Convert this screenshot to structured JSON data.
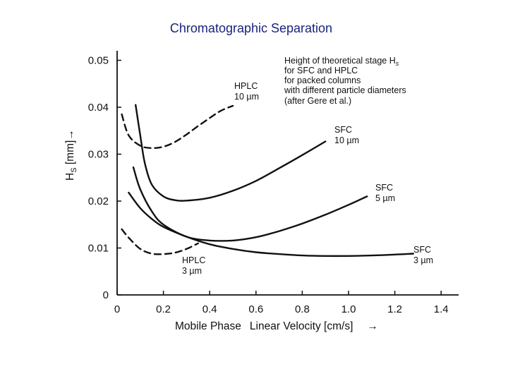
{
  "title": "Chromatographic Separation",
  "chart_data": {
    "type": "line",
    "title": "Chromatographic Separation",
    "xlabel": "Mobile Phase  Linear Velocity [cm/s]",
    "xlabel_parts": [
      "Mobile Phase",
      "Linear Velocity [cm/s]"
    ],
    "xlabel_arrow": "→",
    "ylabel": "Hs [mm]→",
    "ylabel_main": "H",
    "ylabel_sub": "S",
    "ylabel_rest": " [mm]→",
    "xlim": [
      0,
      1.45
    ],
    "ylim": [
      0,
      0.055
    ],
    "xticks": [
      0,
      0.2,
      0.4,
      0.6,
      0.8,
      1.0,
      1.2,
      1.4
    ],
    "xtick_labels": [
      "0",
      "0.2",
      "0.4",
      "0.6",
      "0.8",
      "1.0",
      "1.2",
      "1.4"
    ],
    "yticks": [
      0,
      0.01,
      0.02,
      0.03,
      0.04,
      0.05
    ],
    "ytick_labels": [
      "0",
      "0.01",
      "0.02",
      "0.03",
      "0.04",
      "0.05"
    ],
    "annotation": {
      "line1": "Height of theoretical stage H",
      "line1_sub": "s",
      "line2": "for SFC and HPLC",
      "line3": "for packed columns",
      "line4": "with different particle diameters",
      "line5": "(after Gere et al.)"
    },
    "series": [
      {
        "name": "HPLC 10 µm",
        "label_lines": [
          "HPLC",
          "10 µm"
        ],
        "style": "dashed",
        "x": [
          0.02,
          0.05,
          0.1,
          0.15,
          0.2,
          0.25,
          0.3,
          0.35,
          0.4,
          0.45,
          0.5
        ],
        "y": [
          0.0385,
          0.034,
          0.0318,
          0.0313,
          0.0316,
          0.0326,
          0.0342,
          0.036,
          0.0377,
          0.0393,
          0.0403
        ]
      },
      {
        "name": "SFC 10 µm",
        "label_lines": [
          "SFC",
          "10 µm"
        ],
        "style": "solid",
        "x": [
          0.08,
          0.1,
          0.12,
          0.15,
          0.2,
          0.25,
          0.3,
          0.4,
          0.5,
          0.6,
          0.7,
          0.8,
          0.9
        ],
        "y": [
          0.0405,
          0.034,
          0.028,
          0.0235,
          0.021,
          0.0202,
          0.0201,
          0.0207,
          0.0222,
          0.0243,
          0.027,
          0.0298,
          0.0327
        ]
      },
      {
        "name": "SFC 5 µm",
        "label_lines": [
          "SFC",
          "5 µm"
        ],
        "style": "solid",
        "x": [
          0.07,
          0.1,
          0.15,
          0.2,
          0.3,
          0.4,
          0.5,
          0.6,
          0.7,
          0.8,
          0.9,
          1.0,
          1.08
        ],
        "y": [
          0.0272,
          0.0225,
          0.0178,
          0.015,
          0.0124,
          0.0116,
          0.0116,
          0.0123,
          0.0136,
          0.0152,
          0.0171,
          0.0192,
          0.021
        ]
      },
      {
        "name": "SFC 3 µm",
        "label_lines": [
          "SFC",
          "3 µm"
        ],
        "style": "solid",
        "x": [
          0.05,
          0.1,
          0.15,
          0.2,
          0.3,
          0.4,
          0.5,
          0.6,
          0.7,
          0.8,
          0.9,
          1.0,
          1.1,
          1.2,
          1.28
        ],
        "y": [
          0.0218,
          0.0185,
          0.0162,
          0.0145,
          0.0124,
          0.0108,
          0.0098,
          0.0091,
          0.0087,
          0.0084,
          0.0083,
          0.0083,
          0.0084,
          0.0086,
          0.0088
        ]
      },
      {
        "name": "HPLC 3 µm",
        "label_lines": [
          "HPLC",
          "3 µm"
        ],
        "style": "dashed",
        "x": [
          0.02,
          0.05,
          0.1,
          0.15,
          0.2,
          0.25,
          0.3,
          0.35
        ],
        "y": [
          0.014,
          0.0122,
          0.0098,
          0.0088,
          0.0087,
          0.009,
          0.0098,
          0.011
        ]
      }
    ]
  }
}
